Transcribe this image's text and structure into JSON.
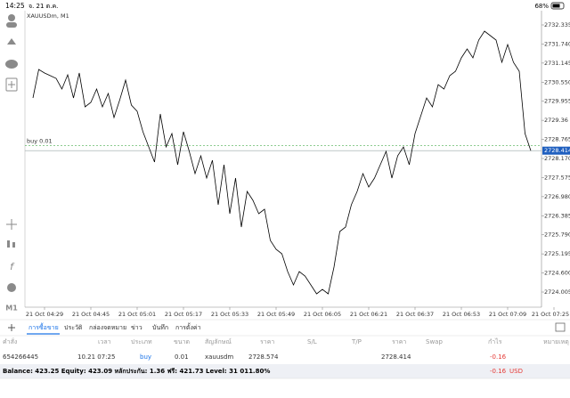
{
  "status_bar": {
    "time": "14:25",
    "date": "จ. 21 ต.ค.",
    "battery": "68%"
  },
  "chart_data": {
    "type": "line",
    "title": "XAUUSDm, M1",
    "color": "#000000",
    "x": [
      "21 Oct 04:25",
      "21 Oct 04:27",
      "21 Oct 04:29",
      "21 Oct 04:31",
      "21 Oct 04:33",
      "21 Oct 04:35",
      "21 Oct 04:37",
      "21 Oct 04:39",
      "21 Oct 04:41",
      "21 Oct 04:43",
      "21 Oct 04:45",
      "21 Oct 04:47",
      "21 Oct 04:49",
      "21 Oct 04:51",
      "21 Oct 04:53",
      "21 Oct 04:55",
      "21 Oct 04:57",
      "21 Oct 04:59",
      "21 Oct 05:01",
      "21 Oct 05:03",
      "21 Oct 05:05",
      "21 Oct 05:07",
      "21 Oct 05:09",
      "21 Oct 05:11",
      "21 Oct 05:13",
      "21 Oct 05:15",
      "21 Oct 05:17",
      "21 Oct 05:19",
      "21 Oct 05:21",
      "21 Oct 05:23",
      "21 Oct 05:25",
      "21 Oct 05:27",
      "21 Oct 05:29",
      "21 Oct 05:31",
      "21 Oct 05:33",
      "21 Oct 05:35",
      "21 Oct 05:37",
      "21 Oct 05:39",
      "21 Oct 05:41",
      "21 Oct 05:43",
      "21 Oct 05:45",
      "21 Oct 05:47",
      "21 Oct 05:49",
      "21 Oct 05:51",
      "21 Oct 05:53",
      "21 Oct 05:55",
      "21 Oct 05:57",
      "21 Oct 05:59",
      "21 Oct 06:01",
      "21 Oct 06:03",
      "21 Oct 06:05",
      "21 Oct 06:07",
      "21 Oct 06:09",
      "21 Oct 06:11",
      "21 Oct 06:13",
      "21 Oct 06:15",
      "21 Oct 06:17",
      "21 Oct 06:19",
      "21 Oct 06:21",
      "21 Oct 06:23",
      "21 Oct 06:25",
      "21 Oct 06:27",
      "21 Oct 06:29",
      "21 Oct 06:31",
      "21 Oct 06:33",
      "21 Oct 06:35",
      "21 Oct 06:37",
      "21 Oct 06:39",
      "21 Oct 06:41",
      "21 Oct 06:43",
      "21 Oct 06:45",
      "21 Oct 06:47",
      "21 Oct 06:49",
      "21 Oct 06:51",
      "21 Oct 06:53",
      "21 Oct 06:55",
      "21 Oct 06:57",
      "21 Oct 06:59",
      "21 Oct 07:01",
      "21 Oct 07:03",
      "21 Oct 07:05",
      "21 Oct 07:07",
      "21 Oct 07:09",
      "21 Oct 07:11",
      "21 Oct 07:13",
      "21 Oct 07:15",
      "21 Oct 07:17"
    ],
    "values": [
      2730.058,
      2730.947,
      2730.836,
      2730.752,
      2730.669,
      2730.336,
      2730.78,
      2730.058,
      2730.836,
      2729.78,
      2729.919,
      2730.336,
      2729.78,
      2730.197,
      2729.447,
      2730.003,
      2730.613,
      2729.836,
      2729.642,
      2729.003,
      2728.531,
      2728.059,
      2729.558,
      2728.531,
      2728.947,
      2727.976,
      2729.003,
      2728.392,
      2727.698,
      2728.253,
      2727.559,
      2728.114,
      2726.726,
      2727.976,
      2726.448,
      2727.559,
      2726.032,
      2727.143,
      2726.865,
      2726.448,
      2726.587,
      2725.615,
      2725.338,
      2725.199,
      2724.644,
      2724.227,
      2724.644,
      2724.505,
      2724.227,
      2723.949,
      2724.088,
      2723.949,
      2724.782,
      2725.893,
      2726.032,
      2726.726,
      2727.143,
      2727.698,
      2727.281,
      2727.559,
      2727.976,
      2728.392,
      2727.559,
      2728.253,
      2728.531,
      2727.976,
      2728.947,
      2729.503,
      2730.058,
      2729.78,
      2730.475,
      2730.336,
      2730.752,
      2730.891,
      2731.308,
      2731.585,
      2731.308,
      2731.863,
      2732.141,
      2732.002,
      2731.863,
      2731.169,
      2731.724,
      2731.169,
      2730.891,
      2728.947,
      2728.414
    ],
    "xlim": [
      "21 Oct 04:25",
      "21 Oct 07:25"
    ],
    "xticks": [
      "21 Oct 04:29",
      "21 Oct 04:45",
      "21 Oct 05:01",
      "21 Oct 05:17",
      "21 Oct 05:33",
      "21 Oct 05:49",
      "21 Oct 06:05",
      "21 Oct 06:21",
      "21 Oct 06:37",
      "21 Oct 06:53",
      "21 Oct 07:09",
      "21 Oct 07:25"
    ],
    "ylim": [
      2723.533,
      2732.779
    ],
    "yticks": [
      2732.335,
      {
        "value": 2731.74,
        "label": "2731.740"
      },
      2731.145,
      {
        "value": 2730.55,
        "label": "2730.550"
      },
      2729.955,
      2729.36,
      2728.765,
      {
        "value": 2728.17,
        "label": "2728.170"
      },
      2727.575,
      {
        "value": 2726.98,
        "label": "2726.980"
      },
      2726.385,
      {
        "value": 2725.79,
        "label": "2725.790"
      },
      2725.195,
      {
        "value": 2724.6,
        "label": "2724.600"
      },
      2724.005
    ],
    "current_price": 2728.414,
    "order_line": {
      "label": "buy 0.01",
      "value": 2728.574
    }
  },
  "toolbar": {
    "timeframe": "M1"
  },
  "tabs": [
    "การซื้อขาย",
    "ประวัติ",
    "กล่องจดหมาย",
    "ข่าว",
    "บันทึก",
    "การตั้งค่า"
  ],
  "table": {
    "headers": [
      "คำสั่ง",
      "เวลา",
      "ประเภท",
      "ขนาด",
      "สัญลักษณ์",
      "ราคา",
      "S/L",
      "T/P",
      "ราคา",
      "Swap",
      "กำไร",
      "หมายเหตุ"
    ],
    "row": {
      "order": "654266445",
      "time": "10.21 07:25",
      "type": "buy",
      "volume": "0.01",
      "symbol": "xauusdm",
      "open_price": "2728.574",
      "price": "2728.414",
      "profit": "-0.16"
    },
    "summary": {
      "text": "Balance: 423.25 Equity: 423.09 หลักประกัน: 1.36 ฟรี: 421.73 Level: 31 011.80%",
      "profit": "-0.16",
      "currency": "USD"
    }
  }
}
